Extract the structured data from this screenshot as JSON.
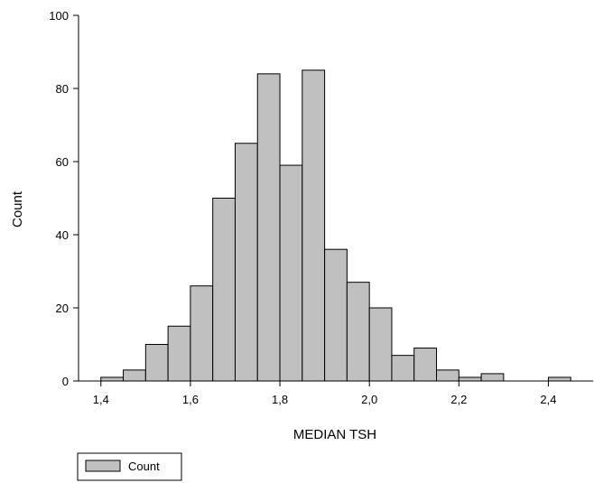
{
  "chart_data": {
    "type": "bar",
    "title": "",
    "xlabel": "MEDIAN TSH",
    "ylabel": "Count",
    "xlim": [
      1.35,
      2.5
    ],
    "ylim": [
      0,
      100
    ],
    "bin_width": 0.05,
    "xticks": [
      1.4,
      1.6,
      1.8,
      2.0,
      2.2,
      2.4
    ],
    "xtick_labels": [
      "1,4",
      "1,6",
      "1,8",
      "2,0",
      "2,2",
      "2,4"
    ],
    "yticks": [
      0,
      20,
      40,
      60,
      80,
      100
    ],
    "ytick_labels": [
      "0",
      "20",
      "40",
      "60",
      "80",
      "100"
    ],
    "grid": false,
    "legend": {
      "position": "bottom-left",
      "entries": [
        "Count"
      ]
    },
    "series": [
      {
        "name": "Count",
        "color": "#c0c0c0",
        "bins": [
          {
            "x": 1.425,
            "value": 1
          },
          {
            "x": 1.475,
            "value": 3
          },
          {
            "x": 1.525,
            "value": 10
          },
          {
            "x": 1.575,
            "value": 15
          },
          {
            "x": 1.625,
            "value": 26
          },
          {
            "x": 1.675,
            "value": 50
          },
          {
            "x": 1.725,
            "value": 65
          },
          {
            "x": 1.775,
            "value": 84
          },
          {
            "x": 1.825,
            "value": 59
          },
          {
            "x": 1.875,
            "value": 85
          },
          {
            "x": 1.925,
            "value": 36
          },
          {
            "x": 1.975,
            "value": 27
          },
          {
            "x": 2.025,
            "value": 20
          },
          {
            "x": 2.075,
            "value": 7
          },
          {
            "x": 2.125,
            "value": 9
          },
          {
            "x": 2.175,
            "value": 3
          },
          {
            "x": 2.225,
            "value": 1
          },
          {
            "x": 2.275,
            "value": 2
          },
          {
            "x": 2.425,
            "value": 1
          }
        ]
      }
    ]
  }
}
